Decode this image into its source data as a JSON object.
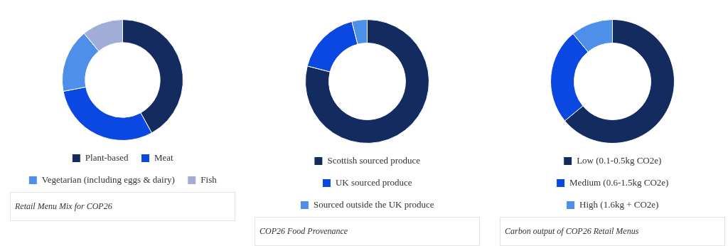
{
  "chart_data": [
    {
      "type": "donut",
      "title": "Retail Menu Mix for COP26",
      "categories": [
        "Plant-based",
        "Meat",
        "Vegetarian (including eggs & dairy)",
        "Fish"
      ],
      "values": [
        42,
        30,
        17,
        11
      ],
      "colors": [
        "#132b5f",
        "#0b48e2",
        "#4e8fe9",
        "#a1add6"
      ],
      "legend": "bottom"
    },
    {
      "type": "donut",
      "title": "COP26 Food Provenance",
      "categories": [
        "Scottish sourced produce",
        "UK sourced produce",
        "Sourced outside the UK produce"
      ],
      "values": [
        79,
        17,
        4
      ],
      "colors": [
        "#132b5f",
        "#0b48e2",
        "#4e8fe9"
      ],
      "legend": "bottom"
    },
    {
      "type": "donut",
      "title": "Carbon output of COP26 Retail Menus",
      "categories": [
        "Low (0.1-0.5kg CO2e)",
        "Medium (0.6-1.5kg CO2e)",
        "High (1.6kg + CO2e)"
      ],
      "values": [
        64,
        25,
        11
      ],
      "colors": [
        "#132b5f",
        "#0b48e2",
        "#4e8fe9"
      ],
      "legend": "bottom"
    }
  ]
}
